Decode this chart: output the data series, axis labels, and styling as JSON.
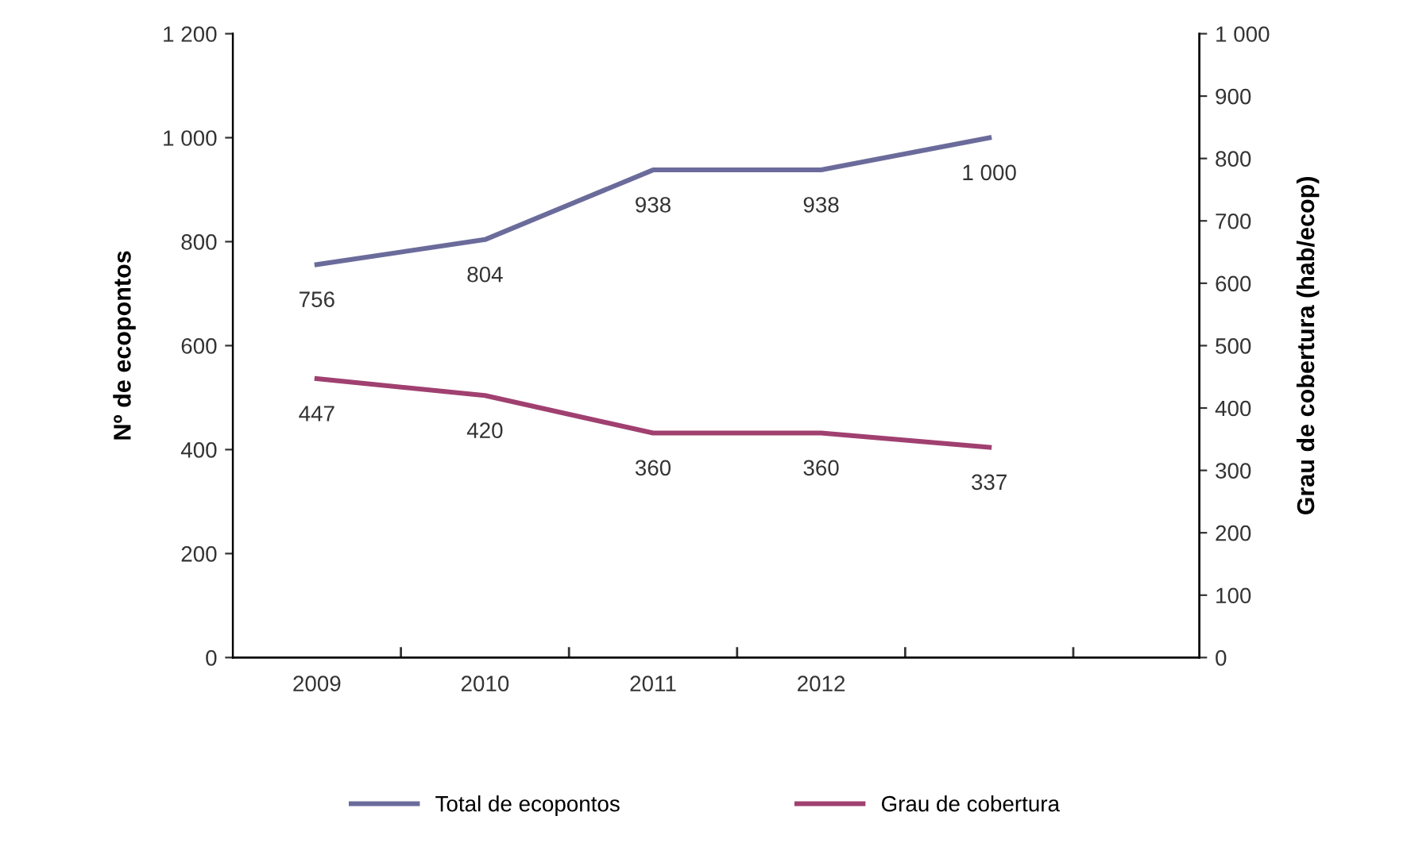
{
  "chart_data": {
    "type": "line",
    "ylabel": "Nº de ecopontos",
    "y2label": "Grau de cobertura (hab/ecop)",
    "categories": [
      "2009",
      "2010",
      "2011",
      "2012",
      null
    ],
    "series": [
      {
        "name": "Total de ecopontos",
        "color": "#6b6b9b",
        "values": [
          756,
          804,
          938,
          938,
          1000
        ],
        "value_labels": [
          "756",
          "804",
          "938",
          "938",
          "1 000"
        ]
      },
      {
        "name": "Grau de cobertura",
        "color": "#a04070",
        "axis": "y2",
        "values": [
          447,
          420,
          360,
          360,
          337
        ],
        "value_labels": [
          "447",
          "420",
          "360",
          "360",
          "337"
        ]
      }
    ],
    "ylim": [
      0,
      1200
    ],
    "yticks": [
      0,
      200,
      400,
      600,
      800,
      {
        "value": 1000,
        "label": "1 000"
      },
      {
        "value": 1200,
        "label": "1 200"
      }
    ],
    "y2lim": [
      0,
      1000
    ],
    "y2ticks": [
      0,
      100,
      200,
      300,
      400,
      500,
      600,
      700,
      800,
      900,
      {
        "value": 1000,
        "label": "1 000"
      }
    ],
    "legend": "bottom",
    "grid": false,
    "marker": "none",
    "line_style": "solid"
  }
}
